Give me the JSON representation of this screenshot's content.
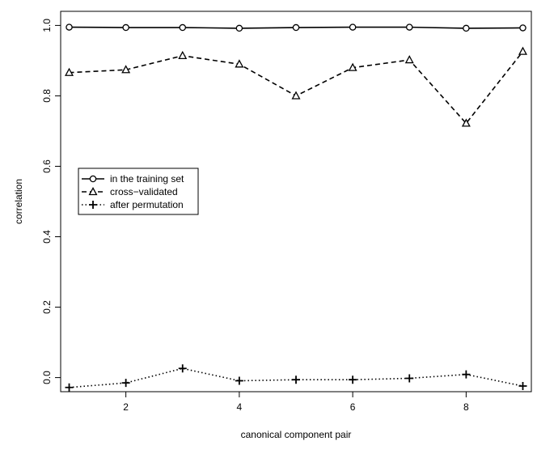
{
  "chart_data": {
    "type": "line",
    "xlabel": "canonical component pair",
    "ylabel": "correlation",
    "x": [
      1,
      2,
      3,
      4,
      5,
      6,
      7,
      8,
      9
    ],
    "xlim": [
      0.85,
      9.15
    ],
    "ylim": [
      -0.04,
      1.04
    ],
    "xticks": [
      2,
      4,
      6,
      8
    ],
    "yticks": [
      0.0,
      0.2,
      0.4,
      0.6,
      0.8,
      1.0
    ],
    "ytick_labels": [
      "0.0",
      "0.2",
      "0.4",
      "0.6",
      "0.8",
      "1.0"
    ],
    "grid": false,
    "legend_position": "middle-left",
    "series": [
      {
        "name": "in the training set",
        "values": [
          0.995,
          0.994,
          0.994,
          0.992,
          0.994,
          0.995,
          0.995,
          0.992,
          0.993
        ],
        "line": "solid",
        "marker": "circle"
      },
      {
        "name": "cross−validated",
        "values": [
          0.866,
          0.874,
          0.914,
          0.89,
          0.8,
          0.88,
          0.902,
          0.722,
          0.926
        ],
        "line": "dashed",
        "marker": "triangle"
      },
      {
        "name": "after permutation",
        "values": [
          -0.028,
          -0.015,
          0.026,
          -0.009,
          -0.006,
          -0.006,
          -0.002,
          0.009,
          -0.024
        ],
        "line": "dotted",
        "marker": "plus"
      }
    ]
  }
}
